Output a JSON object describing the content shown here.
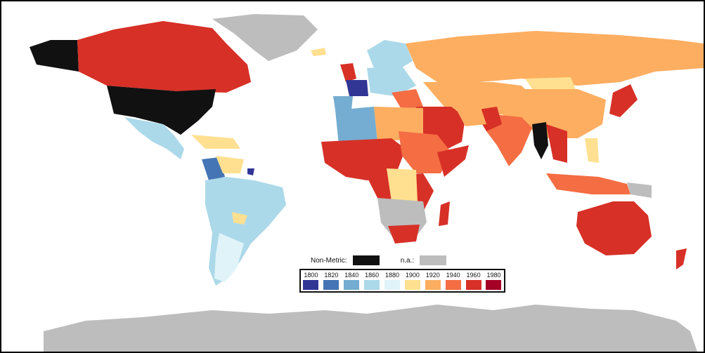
{
  "legend": {
    "non_metric_label": "Non-Metric:",
    "na_label": "n.a.:",
    "non_metric_color": "#111111",
    "na_color": "#bdbdbd",
    "years": [
      "1800",
      "1820",
      "1840",
      "1860",
      "1880",
      "1900",
      "1920",
      "1940",
      "1960",
      "1980"
    ],
    "colors": [
      "#313695",
      "#4575b4",
      "#74add1",
      "#abd9e9",
      "#e0f3f8",
      "#fee090",
      "#fdae61",
      "#f46d43",
      "#d73027",
      "#a50026"
    ]
  }
}
